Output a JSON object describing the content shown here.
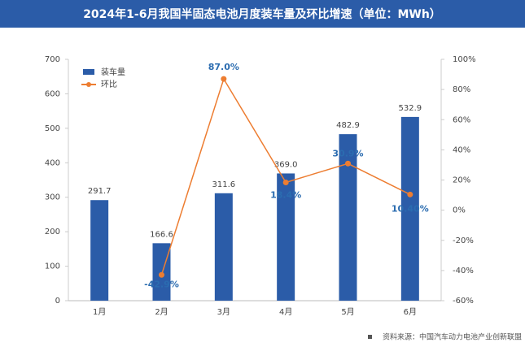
{
  "chart_data": {
    "type": "bar-line",
    "title": "2024年1-6月我国半固态电池月度装车量及环比增速（单位：MWh）",
    "categories": [
      "1月",
      "2月",
      "3月",
      "4月",
      "5月",
      "6月"
    ],
    "series": [
      {
        "name": "装车量",
        "type": "bar",
        "color": "#2b5ca8",
        "values": [
          291.7,
          166.6,
          311.6,
          369.0,
          482.9,
          532.9
        ],
        "value_labels": [
          "291.7",
          "166.6",
          "311.6",
          "369.0",
          "482.9",
          "532.9"
        ]
      },
      {
        "name": "环比",
        "type": "line",
        "axis": "y2",
        "color": "#ed7d31",
        "values": [
          null,
          -42.9,
          87.0,
          18.4,
          30.9,
          10.4
        ],
        "value_labels": [
          null,
          "-42.9%",
          "87.0%",
          "18.4%",
          "30.9%",
          "10.40%"
        ]
      }
    ],
    "ylim": [
      0,
      700
    ],
    "yticks": [
      0,
      100,
      200,
      300,
      400,
      500,
      600,
      700
    ],
    "y2lim": [
      -60,
      100
    ],
    "y2ticks": [
      {
        "value": -60,
        "label": "-60%"
      },
      {
        "value": -40,
        "label": "-40%"
      },
      {
        "value": -20,
        "label": "-20%"
      },
      {
        "value": 0,
        "label": "0%"
      },
      {
        "value": 20,
        "label": "20%"
      },
      {
        "value": 40,
        "label": "40%"
      },
      {
        "value": 60,
        "label": "60%"
      },
      {
        "value": 80,
        "label": "80%"
      },
      {
        "value": 100,
        "label": "100%"
      }
    ],
    "source": "资料来源：中国汽车动力电池产业创新联盟"
  }
}
